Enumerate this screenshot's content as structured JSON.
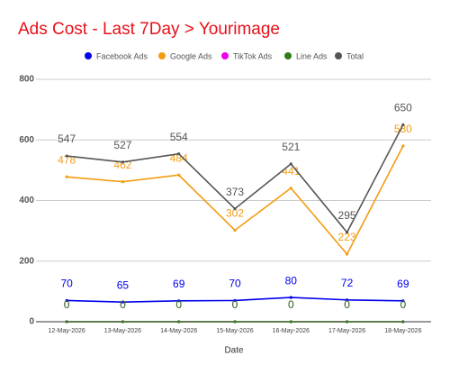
{
  "chart_data": {
    "type": "line",
    "title": "Ads Cost - Last 7Day > Yourimage",
    "x_label": "Date",
    "categories": [
      "12-May-2026",
      "13-May-2026",
      "14-May-2026",
      "15-May-2026",
      "16-May-2026",
      "17-May-2026",
      "18-May-2026"
    ],
    "series": [
      {
        "name": "Facebook Ads",
        "color": "#0000ee",
        "values": [
          70,
          65,
          69,
          70,
          80,
          72,
          69
        ]
      },
      {
        "name": "Google Ads",
        "color": "#f39c12",
        "values": [
          478,
          462,
          484,
          302,
          441,
          223,
          580
        ]
      },
      {
        "name": "TikTok Ads",
        "color": "#ee00ee",
        "values": [
          0,
          0,
          0,
          0,
          0,
          0,
          0
        ]
      },
      {
        "name": "Line Ads",
        "color": "#2e7d1a",
        "values": [
          0,
          0,
          0,
          0,
          0,
          0,
          0
        ]
      },
      {
        "name": "Total",
        "color": "#555555",
        "values": [
          547,
          527,
          554,
          373,
          521,
          295,
          650
        ]
      }
    ],
    "ylim": [
      0,
      800
    ],
    "yticks": [
      0,
      200,
      400,
      600,
      800
    ],
    "grid": true
  }
}
